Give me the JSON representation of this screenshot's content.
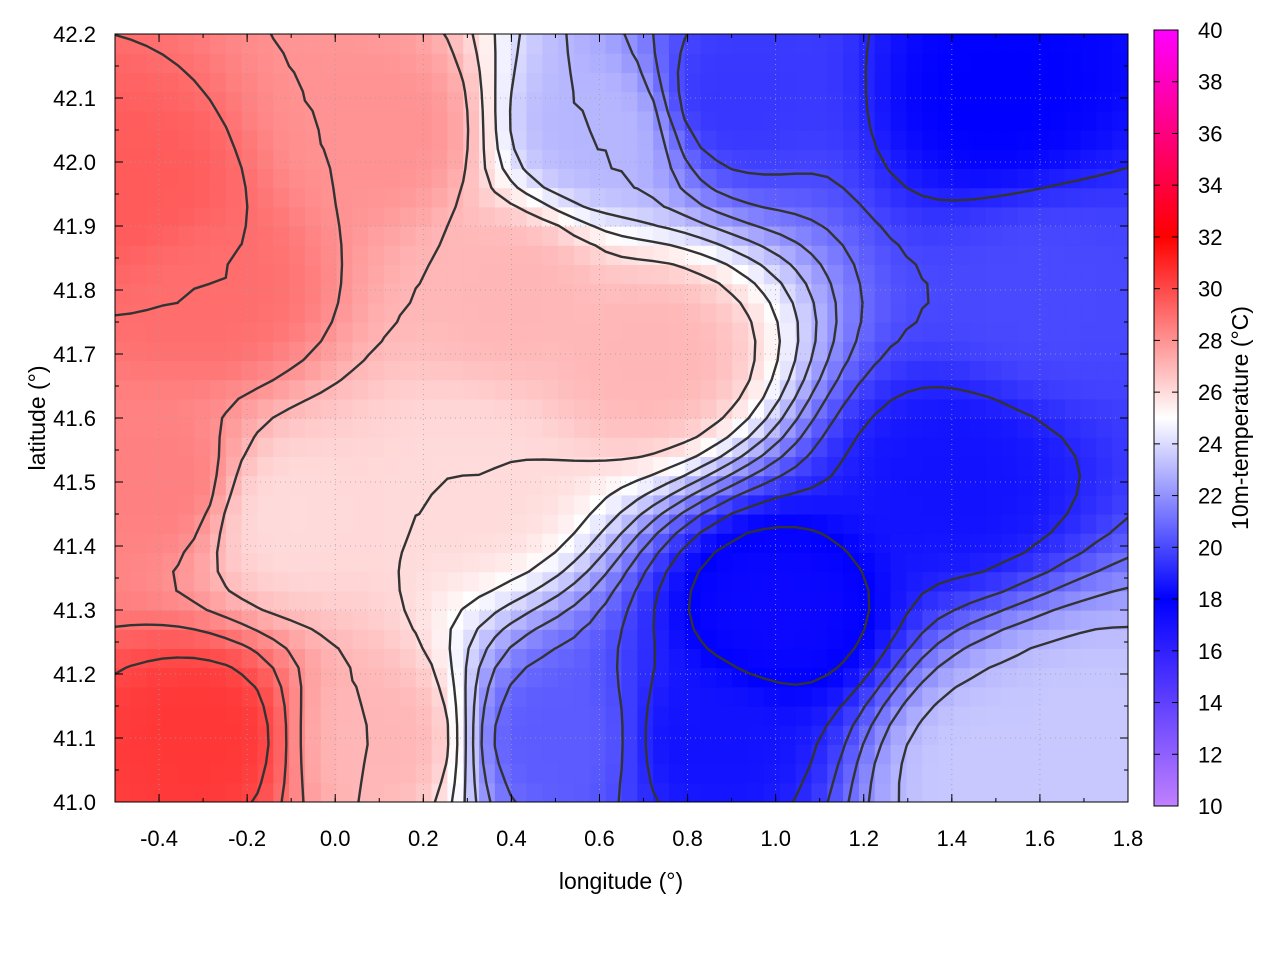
{
  "chart_data": {
    "type": "heatmap",
    "title": "",
    "xlabel": "longitude (°)",
    "ylabel": "latitude (°)",
    "xlim": [
      -0.5,
      1.8
    ],
    "ylim": [
      41.0,
      42.2
    ],
    "x_ticks": [
      -0.4,
      -0.2,
      0.0,
      0.2,
      0.4,
      0.6,
      0.8,
      1.0,
      1.2,
      1.4,
      1.6,
      1.8
    ],
    "y_ticks": [
      41.0,
      41.1,
      41.2,
      41.3,
      41.4,
      41.5,
      41.6,
      41.7,
      41.8,
      41.9,
      42.0,
      42.1,
      42.2
    ],
    "grid": true,
    "colorbar": {
      "label": "10m-temperature (°C)",
      "range": [
        10,
        40
      ],
      "ticks": [
        10,
        12,
        14,
        16,
        18,
        20,
        22,
        24,
        26,
        28,
        30,
        32,
        34,
        36,
        38,
        40
      ],
      "stops": [
        {
          "value": 10,
          "color": "#c080ff"
        },
        {
          "value": 18,
          "color": "#0000ff"
        },
        {
          "value": 25,
          "color": "#ffffff"
        },
        {
          "value": 32,
          "color": "#ff0000"
        },
        {
          "value": 40,
          "color": "#ff00ff"
        }
      ]
    },
    "contour_color": "#333333",
    "field_samples": [
      {
        "lon": -0.45,
        "lat": 41.95,
        "temp": 29.5
      },
      {
        "lon": -0.3,
        "lat": 41.8,
        "temp": 29.0
      },
      {
        "lon": -0.4,
        "lat": 41.5,
        "temp": 28.5
      },
      {
        "lon": -0.3,
        "lat": 41.1,
        "temp": 30.5
      },
      {
        "lon": -0.1,
        "lat": 41.45,
        "temp": 26.0
      },
      {
        "lon": 0.1,
        "lat": 42.05,
        "temp": 28.0
      },
      {
        "lon": 0.4,
        "lat": 41.8,
        "temp": 27.0
      },
      {
        "lon": 0.7,
        "lat": 41.7,
        "temp": 27.0
      },
      {
        "lon": 0.1,
        "lat": 41.1,
        "temp": 27.0
      },
      {
        "lon": 0.3,
        "lat": 41.5,
        "temp": 26.0
      },
      {
        "lon": 0.6,
        "lat": 42.05,
        "temp": 23.0
      },
      {
        "lon": 0.9,
        "lat": 42.1,
        "temp": 19.5
      },
      {
        "lon": 1.5,
        "lat": 42.1,
        "temp": 18.0
      },
      {
        "lon": 1.4,
        "lat": 41.5,
        "temp": 18.5
      },
      {
        "lon": 1.0,
        "lat": 41.3,
        "temp": 17.5
      },
      {
        "lon": 0.85,
        "lat": 41.1,
        "temp": 18.5
      },
      {
        "lon": 0.5,
        "lat": 41.1,
        "temp": 20.5
      },
      {
        "lon": 1.6,
        "lat": 41.8,
        "temp": 20.0
      },
      {
        "lon": 1.5,
        "lat": 41.05,
        "temp": 23.5
      },
      {
        "lon": 1.7,
        "lat": 41.1,
        "temp": 23.5
      }
    ]
  }
}
